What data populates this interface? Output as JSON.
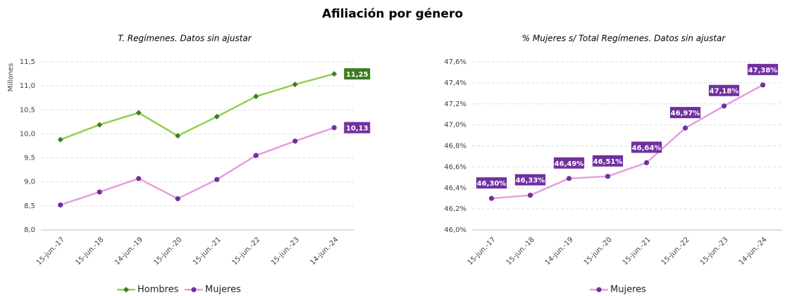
{
  "title": "Afiliación por género",
  "chart_data": [
    {
      "type": "line",
      "title": "T. Regímenes. Datos sin ajustar",
      "y_label": "Millones",
      "categories": [
        "15-jun.-17",
        "15-jun.-18",
        "14-jun.-19",
        "15-jun.-20",
        "15-jun.-21",
        "15-jun.-22",
        "15-jun.-23",
        "14-jun.-24"
      ],
      "series": [
        {
          "name": "Hombres",
          "color": "#92d050",
          "marker_color": "#3a7d22",
          "marker": "diamond",
          "values": [
            9.88,
            10.19,
            10.44,
            9.96,
            10.36,
            10.78,
            11.03,
            11.25
          ],
          "value_labels": [
            null,
            null,
            null,
            null,
            null,
            null,
            null,
            "11,25"
          ]
        },
        {
          "name": "Mujeres",
          "color": "#e59edd",
          "marker_color": "#7030a0",
          "marker": "circle",
          "values": [
            8.52,
            8.79,
            9.07,
            8.65,
            9.05,
            9.55,
            9.85,
            10.13
          ],
          "value_labels": [
            null,
            null,
            null,
            null,
            null,
            null,
            null,
            "10,13"
          ]
        }
      ],
      "ylim": [
        8,
        11.5
      ],
      "yticks": [
        {
          "value": 8,
          "label": "8,0"
        },
        {
          "value": 8.5,
          "label": "8,5"
        },
        {
          "value": 9,
          "label": "9,0"
        },
        {
          "value": 9.5,
          "label": "9,5"
        },
        {
          "value": 10,
          "label": "10,0"
        },
        {
          "value": 10.5,
          "label": "10,5"
        },
        {
          "value": 11,
          "label": "11,0"
        },
        {
          "value": 11.5,
          "label": "11,5"
        }
      ],
      "grid": true,
      "legend": "bottom"
    },
    {
      "type": "line",
      "title": "% Mujeres s/ Total Regímenes. Datos sin ajustar",
      "categories": [
        "15-jun.-17",
        "15-jun.-18",
        "14-jun.-19",
        "15-jun.-20",
        "15-jun.-21",
        "15-jun.-22",
        "15-jun.-23",
        "14-jun.-24"
      ],
      "series": [
        {
          "name": "Mujeres",
          "color": "#e59edd",
          "marker_color": "#7030a0",
          "marker": "circle",
          "values": [
            46.3,
            46.33,
            46.49,
            46.51,
            46.64,
            46.97,
            47.18,
            47.38
          ],
          "value_labels": [
            "46,30%",
            "46,33%",
            "46,49%",
            "46,51%",
            "46,64%",
            "46,97%",
            "47,18%",
            "47,38%"
          ]
        }
      ],
      "ylim": [
        46,
        47.6
      ],
      "yticks": [
        {
          "value": 46,
          "label": "46,0%"
        },
        {
          "value": 46.2,
          "label": "46,2%"
        },
        {
          "value": 46.4,
          "label": "46,4%"
        },
        {
          "value": 46.6,
          "label": "46,6%"
        },
        {
          "value": 46.8,
          "label": "46,8%"
        },
        {
          "value": 47,
          "label": "47,0%"
        },
        {
          "value": 47.2,
          "label": "47,2%"
        },
        {
          "value": 47.4,
          "label": "47,4%"
        },
        {
          "value": 47.6,
          "label": "47,6%"
        }
      ],
      "grid": true,
      "legend": "bottom"
    }
  ]
}
